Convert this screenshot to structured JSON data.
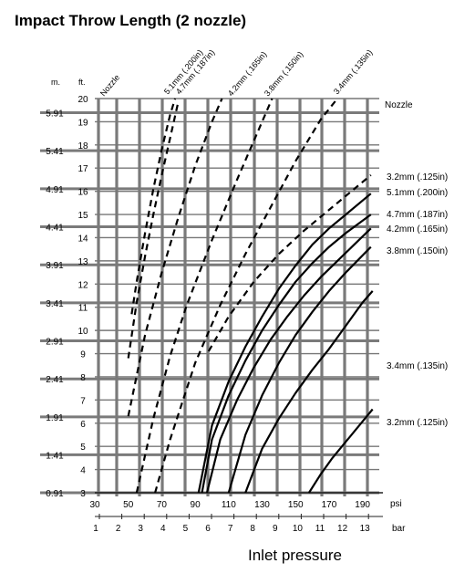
{
  "chart_data": {
    "type": "line",
    "title": "Impact Throw Length (2 nozzle)",
    "xlabel": "Inlet pressure",
    "x_unit_primary": "psi",
    "x_unit_secondary": "bar",
    "y_unit_m": "m.",
    "y_unit_ft": "ft.",
    "xlim_psi": [
      30,
      200
    ],
    "ylim_ft": [
      3,
      20
    ],
    "psi_ticks": [
      "30",
      "50",
      "70",
      "90",
      "110",
      "130",
      "150",
      "170",
      "190"
    ],
    "psi_tick_values": [
      30,
      50,
      70,
      90,
      110,
      130,
      150,
      170,
      190
    ],
    "bar_ticks": [
      "1",
      "2",
      "3",
      "4",
      "5",
      "6",
      "7",
      "8",
      "9",
      "10",
      "11",
      "12",
      "13"
    ],
    "bar_tick_values": [
      1,
      2,
      3,
      4,
      5,
      6,
      7,
      8,
      9,
      10,
      11,
      12,
      13
    ],
    "ft_ticks": [
      "3",
      "4",
      "5",
      "6",
      "7",
      "8",
      "9",
      "10",
      "11",
      "12",
      "13",
      "14",
      "15",
      "16",
      "17",
      "18",
      "19",
      "20"
    ],
    "ft_tick_values": [
      3,
      4,
      5,
      6,
      7,
      8,
      9,
      10,
      11,
      12,
      13,
      14,
      15,
      16,
      17,
      18,
      19,
      20
    ],
    "m_ticks": [
      "0.91",
      "1.41",
      "1.91",
      "2.41",
      "2.91",
      "3.41",
      "3.91",
      "4.41",
      "4.91",
      "5.41",
      "5.91"
    ],
    "m_tick_ft": [
      3,
      4.64,
      6.27,
      7.91,
      9.55,
      11.19,
      12.83,
      14.47,
      16.11,
      17.75,
      19.39
    ],
    "grid": true,
    "dashed_header": "Nozzle",
    "solid_header": "Nozzle",
    "series": [
      {
        "name": "5.1mm (.200in)",
        "style": "dashed",
        "x": [
          52,
          55,
          60,
          65,
          70,
          75,
          78
        ],
        "y": [
          10.7,
          12.1,
          14.2,
          16.1,
          17.8,
          19.3,
          20
        ]
      },
      {
        "name": "4.7mm (.187in)",
        "style": "dashed",
        "x": [
          50,
          55,
          60,
          65,
          70,
          75,
          80
        ],
        "y": [
          8.8,
          11.2,
          13.2,
          15.0,
          16.7,
          18.3,
          19.9
        ]
      },
      {
        "name": "4.2mm (.165in)",
        "style": "dashed",
        "x": [
          50,
          60,
          70,
          80,
          90,
          100,
          106
        ],
        "y": [
          6.3,
          9.8,
          12.5,
          14.9,
          17.1,
          19.0,
          20
        ]
      },
      {
        "name": "3.8mm (.150in)",
        "style": "dashed",
        "x": [
          55,
          65,
          75,
          85,
          100,
          115,
          130,
          136
        ],
        "y": [
          3,
          6.2,
          8.9,
          11.1,
          13.9,
          16.5,
          19.0,
          20
        ]
      },
      {
        "name": "3.4mm (.135in)",
        "style": "dashed",
        "x": [
          66,
          75,
          90,
          105,
          120,
          135,
          150,
          165,
          175
        ],
        "y": [
          3,
          5.3,
          8.6,
          11.1,
          13.3,
          15.3,
          17.3,
          19.1,
          20
        ]
      },
      {
        "name": "3.2mm (.125in)",
        "style": "dashed",
        "x": [
          98,
          110,
          125,
          140,
          155,
          170,
          185,
          195
        ],
        "y": [
          9.1,
          10.6,
          12.1,
          13.3,
          14.3,
          15.2,
          16.1,
          16.7
        ]
      },
      {
        "name": "5.1mm (.200in)",
        "style": "solid",
        "x": [
          92,
          100,
          110,
          120,
          130,
          140,
          150,
          160,
          170,
          180,
          195
        ],
        "y": [
          3,
          5.9,
          7.8,
          9.3,
          10.6,
          11.8,
          12.8,
          13.7,
          14.4,
          15.0,
          15.9
        ]
      },
      {
        "name": "4.7mm (.187in)",
        "style": "solid",
        "x": [
          94,
          100,
          110,
          120,
          130,
          140,
          150,
          160,
          170,
          180,
          195
        ],
        "y": [
          3,
          5.3,
          7.2,
          8.7,
          10.0,
          11.1,
          12.1,
          12.9,
          13.6,
          14.2,
          15.0
        ]
      },
      {
        "name": "4.2mm (.165in)",
        "style": "solid",
        "x": [
          97,
          105,
          115,
          125,
          135,
          145,
          155,
          165,
          175,
          185,
          195
        ],
        "y": [
          3,
          5.3,
          7.0,
          8.4,
          9.6,
          10.6,
          11.5,
          12.3,
          13.0,
          13.7,
          14.4
        ]
      },
      {
        "name": "3.8mm (.150in)",
        "style": "solid",
        "x": [
          110,
          120,
          130,
          140,
          150,
          160,
          170,
          180,
          195
        ],
        "y": [
          3,
          5.5,
          7.2,
          8.6,
          9.8,
          10.8,
          11.7,
          12.5,
          13.6
        ]
      },
      {
        "name": "3.4mm (.135in)",
        "style": "solid",
        "x": [
          120,
          130,
          140,
          150,
          160,
          170,
          180,
          190,
          196
        ],
        "y": [
          3,
          4.9,
          6.2,
          7.3,
          8.3,
          9.2,
          10.2,
          11.2,
          11.7
        ]
      },
      {
        "name": "3.2mm (.125in)",
        "style": "solid",
        "x": [
          158,
          165,
          172,
          180,
          188,
          196
        ],
        "y": [
          3,
          3.8,
          4.5,
          5.2,
          5.9,
          6.6
        ]
      }
    ],
    "dashed_labels": [
      "5.1mm (.200in)",
      "4.7mm (.187in)",
      "4.2mm (.165in)",
      "3.8mm (.150in)",
      "3.4mm (.135in)"
    ],
    "solid_labels": [
      "3.2mm (.125in)",
      "5.1mm (.200in)",
      "4.7mm (.187in)",
      "4.2mm (.165in)",
      "3.8mm (.150in)",
      "3.4mm (.135in)",
      "3.2mm (.125in)"
    ]
  }
}
